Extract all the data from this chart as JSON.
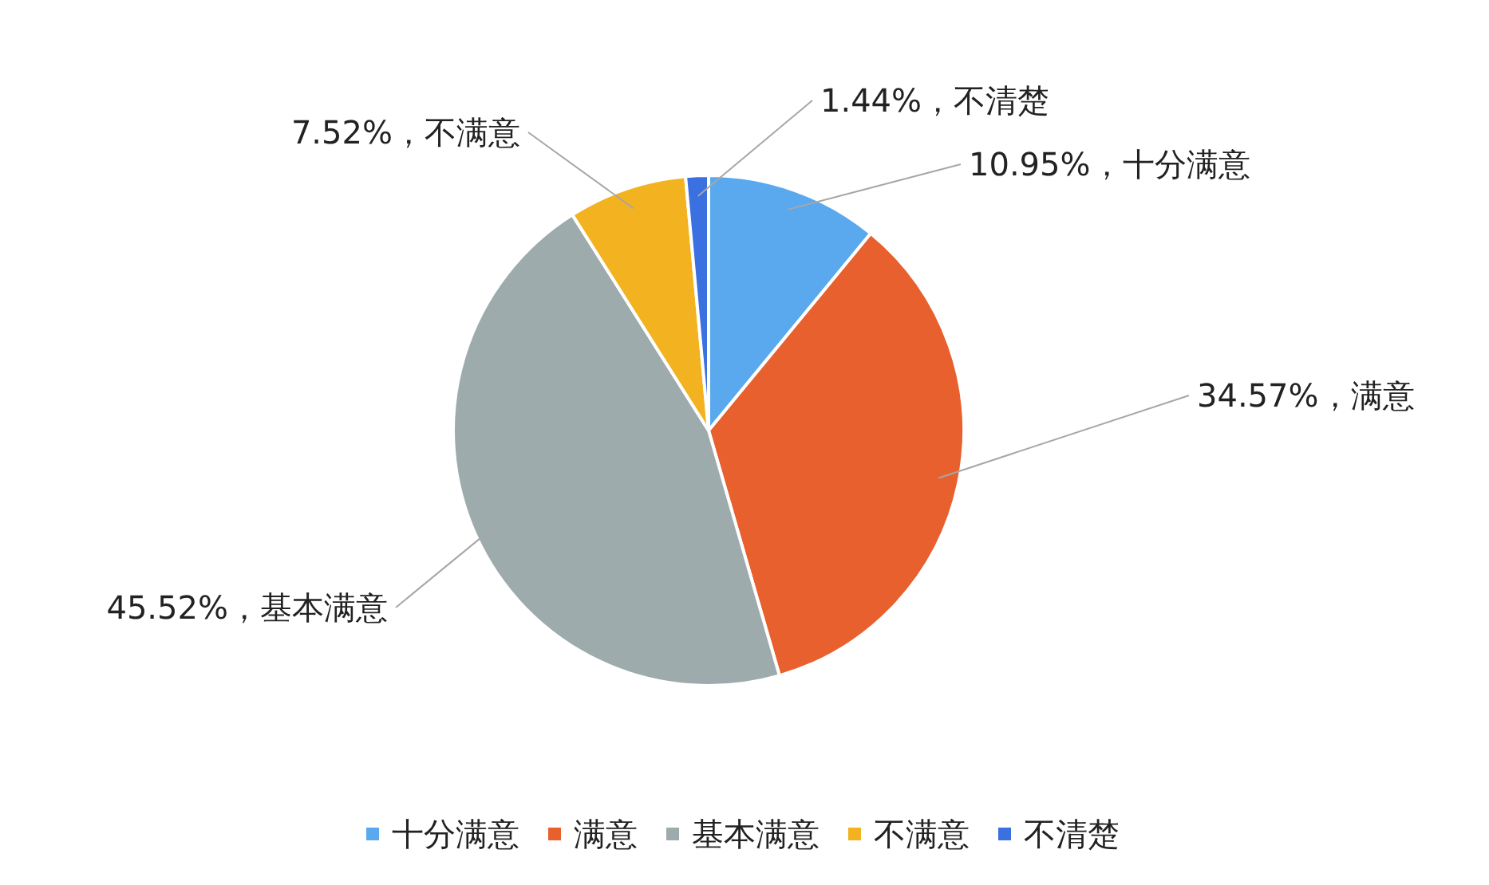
{
  "chart_data": {
    "type": "pie",
    "categories": [
      "十分满意",
      "满意",
      "基本满意",
      "不满意",
      "不清楚"
    ],
    "values": [
      10.95,
      34.57,
      45.52,
      7.52,
      1.44
    ],
    "value_labels": [
      "10.95%，十分满意",
      "34.57%，满意",
      "45.52%，基本满意",
      "7.52%，不满意",
      "1.44%，不清楚"
    ],
    "colors": [
      "#5aa9ee",
      "#e8602e",
      "#9eabad",
      "#f3b21f",
      "#3b70e0"
    ],
    "legend": "bottom"
  }
}
